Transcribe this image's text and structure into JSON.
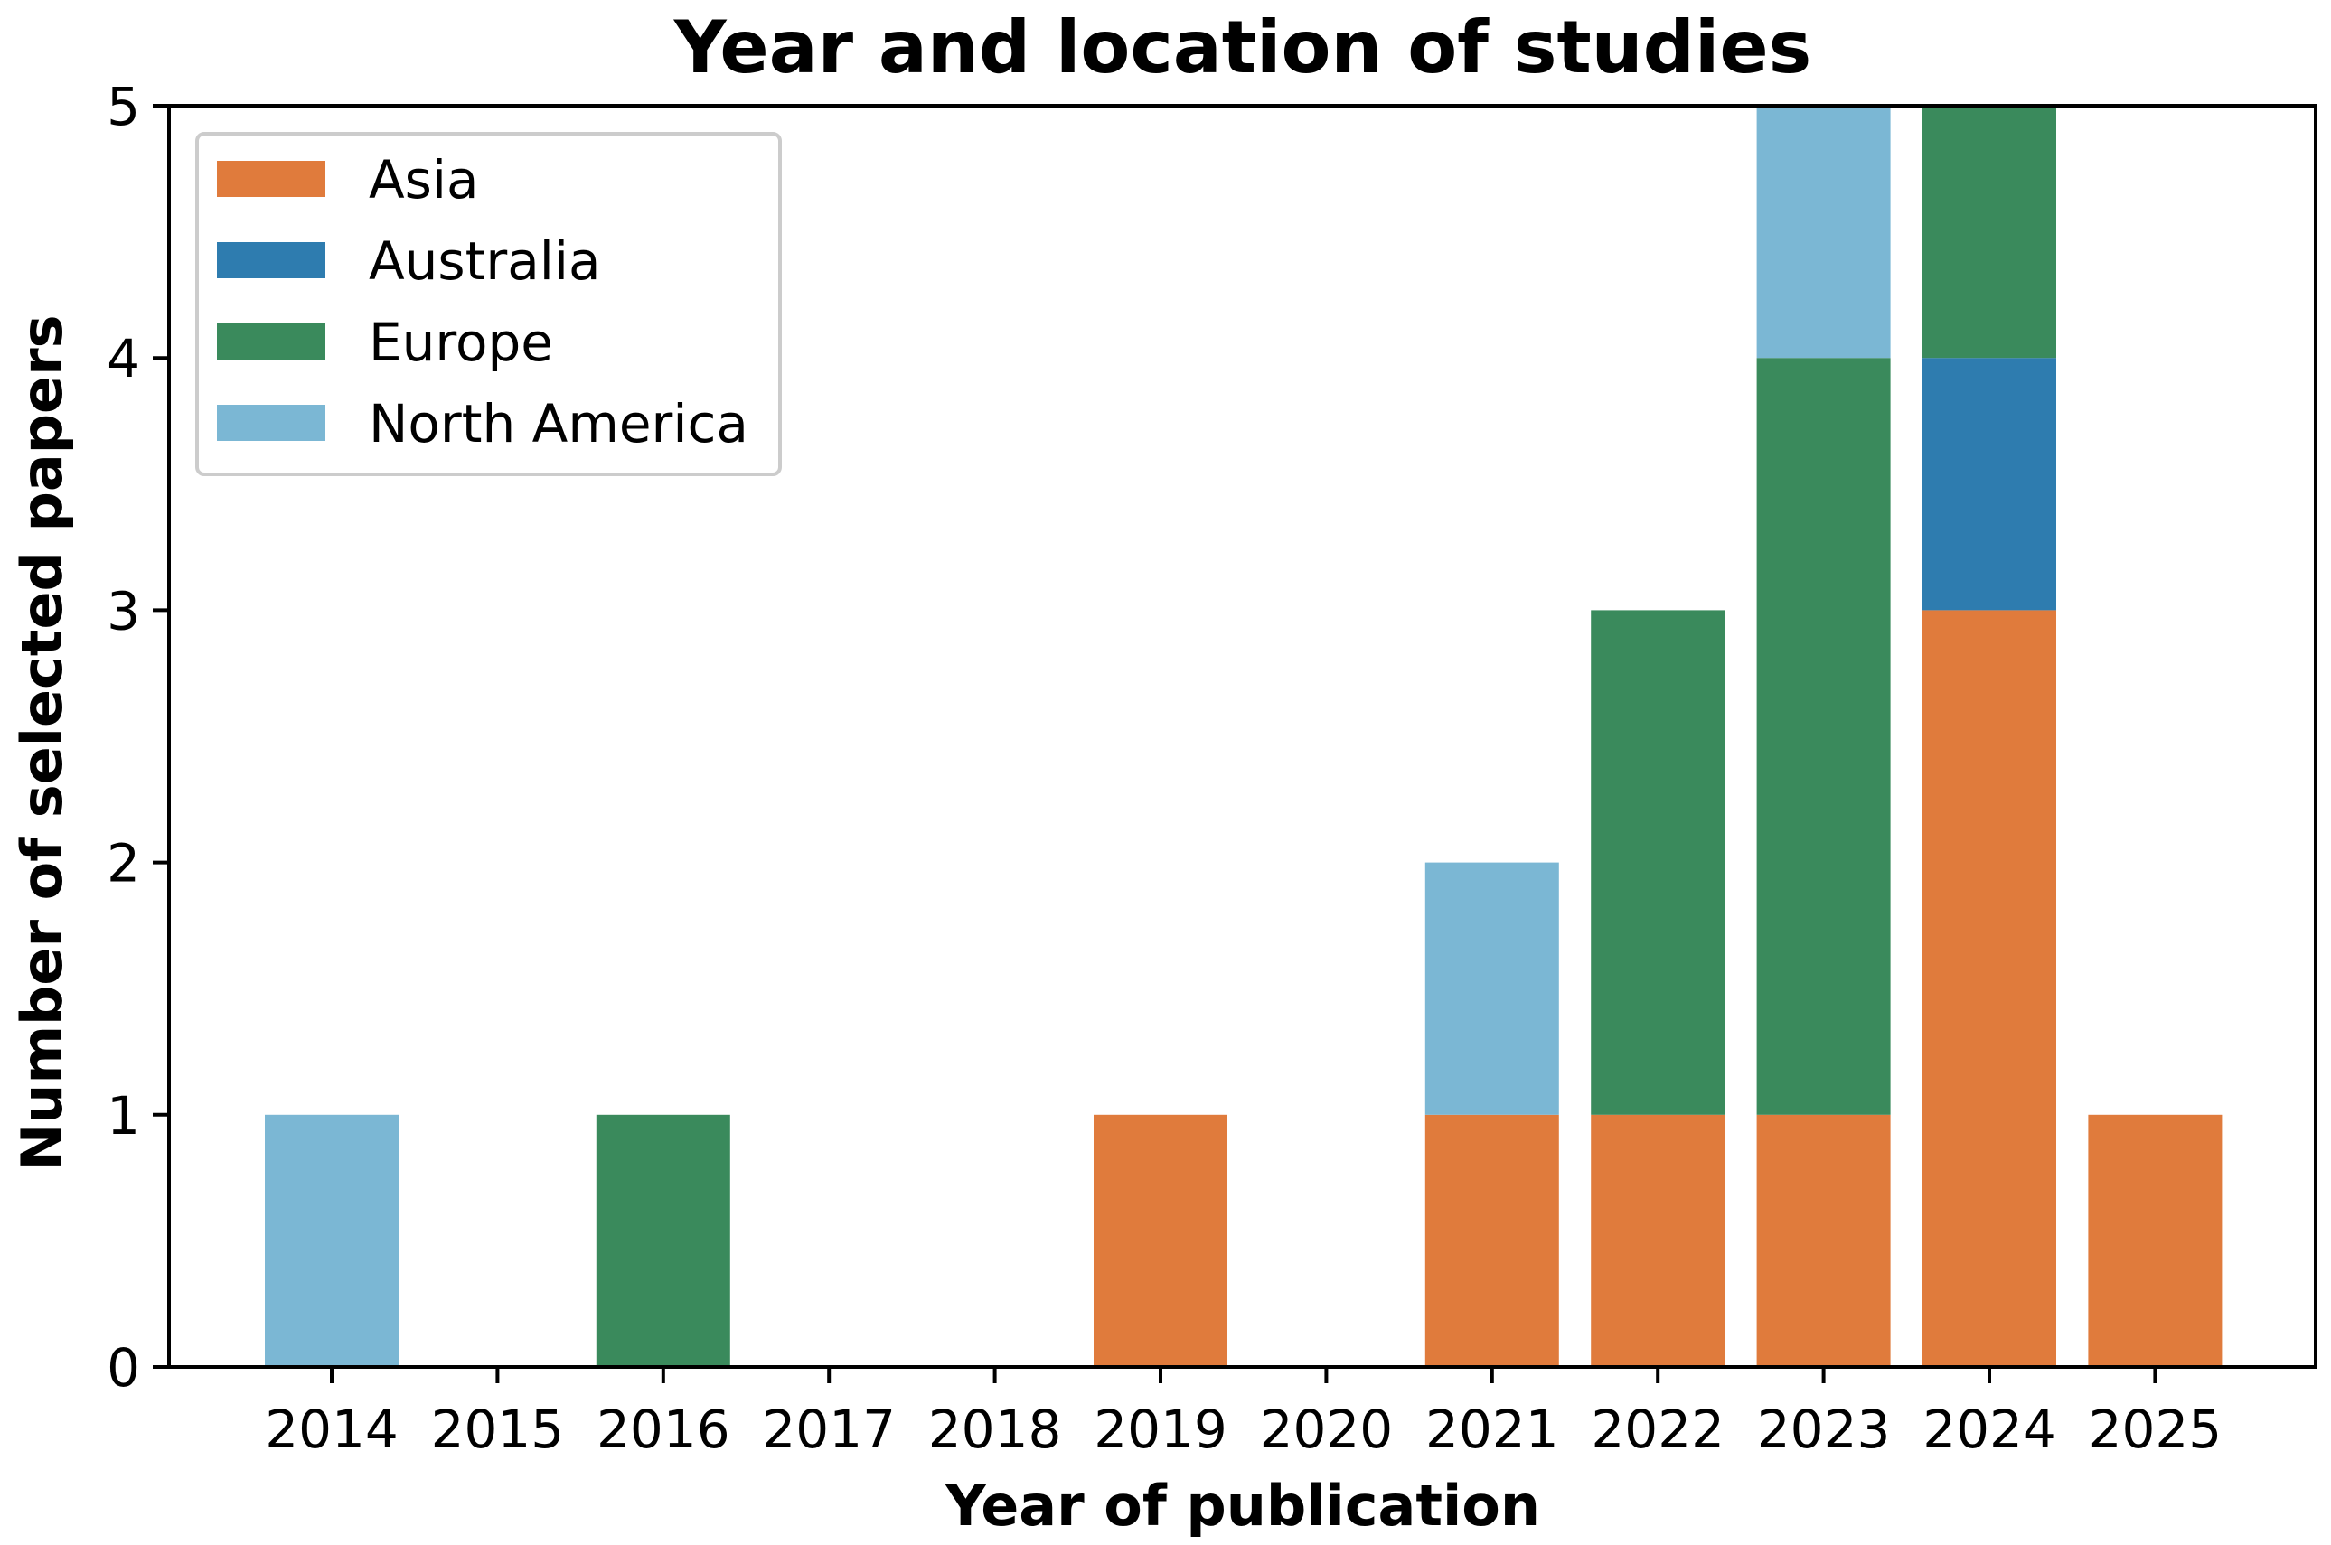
{
  "chart_data": {
    "type": "bar",
    "stacked": true,
    "title": "Year and location of studies",
    "xlabel": "Year of publication",
    "ylabel": "Number of selected papers",
    "ylim": [
      0,
      5
    ],
    "yticks": [
      0,
      1,
      2,
      3,
      4,
      5
    ],
    "categories": [
      "2014",
      "2015",
      "2016",
      "2017",
      "2018",
      "2019",
      "2020",
      "2021",
      "2022",
      "2023",
      "2024",
      "2025"
    ],
    "series": [
      {
        "name": "Asia",
        "color": "#e07b3c",
        "values": [
          0,
          0,
          0,
          0,
          0,
          1,
          0,
          1,
          1,
          1,
          3,
          1
        ]
      },
      {
        "name": "Australia",
        "color": "#2e7caf",
        "values": [
          0,
          0,
          0,
          0,
          0,
          0,
          0,
          0,
          0,
          0,
          1,
          0
        ]
      },
      {
        "name": "Europe",
        "color": "#3a8a5c",
        "values": [
          0,
          0,
          1,
          0,
          0,
          0,
          0,
          0,
          2,
          3,
          1,
          0
        ]
      },
      {
        "name": "North America",
        "color": "#7bb7d4",
        "values": [
          1,
          0,
          0,
          0,
          0,
          0,
          0,
          1,
          0,
          1,
          0,
          0
        ]
      }
    ],
    "legend": {
      "position": "top-left"
    },
    "grid": false
  }
}
